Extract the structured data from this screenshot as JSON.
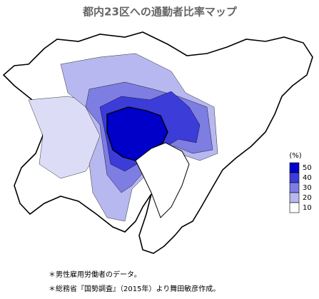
{
  "title": "都内23区への通勤者比率マップ",
  "legend": {
    "unit": "(%)",
    "levels": [
      50,
      40,
      30,
      20,
      10
    ],
    "colors": [
      "#0000c8",
      "#3c3cd8",
      "#7d7de2",
      "#b8b8f0",
      "#ffffff"
    ]
  },
  "notes": [
    "＊男性雇用労働者のデータ。",
    "＊総務省『国勢調査』（2015年）より舞田敏彦作成。"
  ]
}
